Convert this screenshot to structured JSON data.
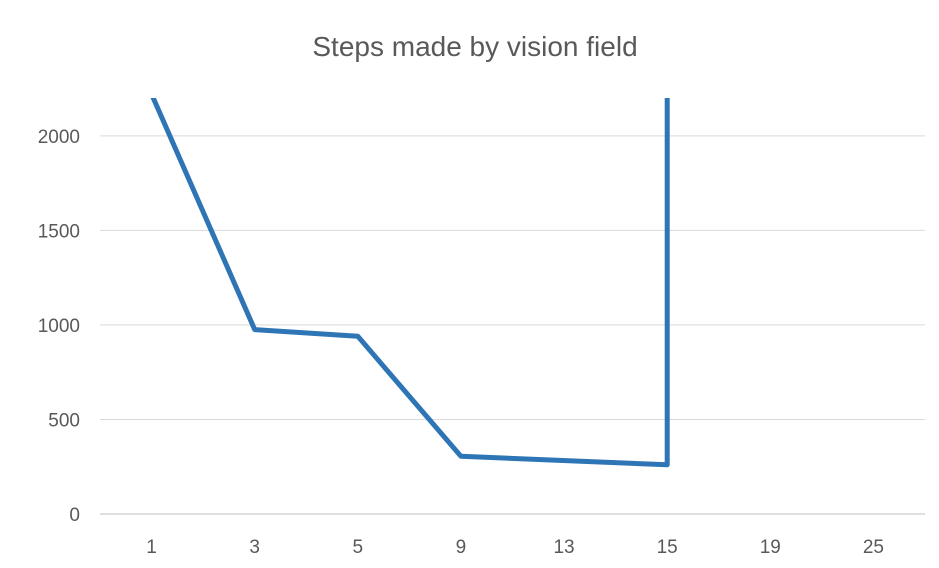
{
  "chart_data": {
    "type": "line",
    "title": "Steps made by vision field",
    "xlabel": "",
    "ylabel": "",
    "categories": [
      "1",
      "3",
      "5",
      "9",
      "13",
      "15",
      "19",
      "25"
    ],
    "y_ticks": [
      0,
      500,
      1000,
      1500,
      2000
    ],
    "ylim": [
      0,
      2200
    ],
    "grid": true,
    "legend": "none",
    "series": [
      {
        "color": "#2e75b6",
        "values": [
          2220,
          975,
          940,
          305,
          null,
          260,
          null,
          null
        ],
        "note_clipped": "value at 1 exceeds top of plot; line rises vertically at 15 beyond the top"
      }
    ]
  }
}
